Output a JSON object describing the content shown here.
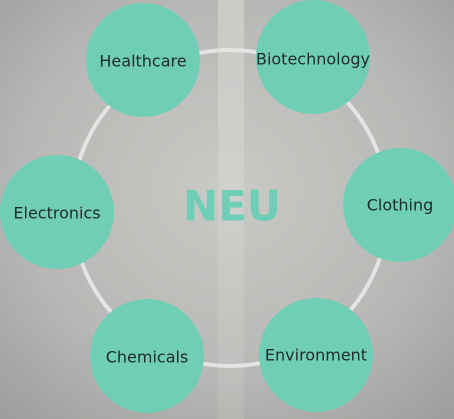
{
  "center": {
    "label": "NEU"
  },
  "nodes": [
    {
      "label": "Healthcare"
    },
    {
      "label": "Biotechnology"
    },
    {
      "label": "Clothing"
    },
    {
      "label": "Environment"
    },
    {
      "label": "Chemicals"
    },
    {
      "label": "Electronics"
    }
  ]
}
